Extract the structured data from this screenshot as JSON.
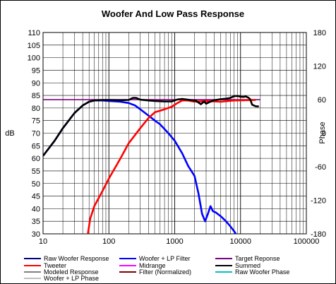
{
  "chart_data": {
    "type": "line",
    "title": "Woofer And Low Pass Response",
    "ylabel": "dB",
    "y2label": "Phase",
    "xscale": "log",
    "xlim": [
      10,
      100000
    ],
    "ylim": [
      30,
      110
    ],
    "y2lim": [
      -180,
      180
    ],
    "x_ticks": [
      "10",
      "100",
      "1000",
      "10000",
      "100000"
    ],
    "y_ticks": [
      "110",
      "105",
      "100",
      "95",
      "90",
      "85",
      "80",
      "75",
      "70",
      "65",
      "60",
      "55",
      "50",
      "45",
      "40",
      "35",
      "30"
    ],
    "y2_ticks": [
      "180",
      "120",
      "60",
      "0",
      "-60",
      "-120",
      "-180"
    ],
    "grid": true,
    "legend_placement": "bottom",
    "legend": [
      {
        "name": "Raw Woofer Response",
        "color": "#000080"
      },
      {
        "name": "Woofer + LP Filter",
        "color": "#0000ff"
      },
      {
        "name": "Target Reponse",
        "color": "#800080"
      },
      {
        "name": "Tweeter",
        "color": "#ff0000"
      },
      {
        "name": "Midrange",
        "color": "#ff00ff"
      },
      {
        "name": "Summed",
        "color": "#000000"
      },
      {
        "name": "Modeled Response",
        "color": "#808080"
      },
      {
        "name": "Filter (Normalized)",
        "color": "#800000"
      },
      {
        "name": "Raw Woofer Phase",
        "color": "#00c0c0"
      },
      {
        "name": "Woofer + LP  Phase",
        "color": "#c0c0c0"
      }
    ],
    "series": [
      {
        "name": "Target Reponse",
        "color": "#800080",
        "points": [
          [
            10,
            83.3
          ],
          [
            20000,
            83.3
          ]
        ]
      },
      {
        "name": "Woofer + LP Filter",
        "color": "#0000ff",
        "points": [
          [
            10,
            61
          ],
          [
            15,
            67
          ],
          [
            20,
            72
          ],
          [
            30,
            78
          ],
          [
            40,
            81
          ],
          [
            50,
            82.5
          ],
          [
            60,
            83
          ],
          [
            80,
            83
          ],
          [
            100,
            82.8
          ],
          [
            150,
            82.5
          ],
          [
            200,
            82
          ],
          [
            250,
            81
          ],
          [
            300,
            79.5
          ],
          [
            400,
            77
          ],
          [
            500,
            75
          ],
          [
            600,
            73.5
          ],
          [
            800,
            70
          ],
          [
            1000,
            67
          ],
          [
            1300,
            62
          ],
          [
            1600,
            57
          ],
          [
            2000,
            53
          ],
          [
            2300,
            46
          ],
          [
            2600,
            38
          ],
          [
            2900,
            35
          ],
          [
            3200,
            38
          ],
          [
            3500,
            41
          ],
          [
            3800,
            39
          ],
          [
            4200,
            38.5
          ],
          [
            5000,
            37
          ],
          [
            6000,
            35
          ],
          [
            7000,
            33
          ],
          [
            8000,
            31
          ],
          [
            9000,
            29
          ]
        ]
      },
      {
        "name": "Tweeter",
        "color": "#ff0000",
        "points": [
          [
            48,
            30
          ],
          [
            52,
            36
          ],
          [
            60,
            41
          ],
          [
            80,
            47
          ],
          [
            100,
            52
          ],
          [
            150,
            60
          ],
          [
            200,
            66
          ],
          [
            300,
            72
          ],
          [
            400,
            76
          ],
          [
            500,
            78.3
          ],
          [
            700,
            79.5
          ],
          [
            900,
            80.5
          ],
          [
            1100,
            82
          ],
          [
            1300,
            83
          ],
          [
            1600,
            83
          ],
          [
            2000,
            82.5
          ],
          [
            3000,
            82.8
          ],
          [
            5000,
            82.5
          ],
          [
            8000,
            83
          ],
          [
            12000,
            83.1
          ],
          [
            17000,
            83.2
          ]
        ]
      },
      {
        "name": "Summed",
        "color": "#000000",
        "points": [
          [
            10,
            61
          ],
          [
            15,
            67
          ],
          [
            20,
            72
          ],
          [
            30,
            78
          ],
          [
            40,
            81
          ],
          [
            50,
            82.5
          ],
          [
            60,
            83
          ],
          [
            80,
            83.2
          ],
          [
            100,
            83.2
          ],
          [
            150,
            83.1
          ],
          [
            200,
            83.2
          ],
          [
            230,
            84
          ],
          [
            260,
            84
          ],
          [
            300,
            83.3
          ],
          [
            400,
            83
          ],
          [
            500,
            82.8
          ],
          [
            700,
            82.6
          ],
          [
            900,
            82.6
          ],
          [
            1100,
            83.4
          ],
          [
            1300,
            83.6
          ],
          [
            1500,
            83.4
          ],
          [
            1800,
            83.1
          ],
          [
            2100,
            82.9
          ],
          [
            2500,
            81.5
          ],
          [
            2800,
            82.6
          ],
          [
            3000,
            81.7
          ],
          [
            3400,
            82.4
          ],
          [
            4000,
            83.1
          ],
          [
            5000,
            83.5
          ],
          [
            6000,
            83.7
          ],
          [
            7000,
            84
          ],
          [
            8000,
            84.7
          ],
          [
            9000,
            84.8
          ],
          [
            10000,
            84.5
          ],
          [
            11000,
            84.4
          ],
          [
            12000,
            84.6
          ],
          [
            13000,
            84.2
          ],
          [
            14000,
            83.5
          ],
          [
            15000,
            81.3
          ],
          [
            17000,
            80.7
          ],
          [
            19000,
            80.6
          ]
        ]
      }
    ]
  }
}
